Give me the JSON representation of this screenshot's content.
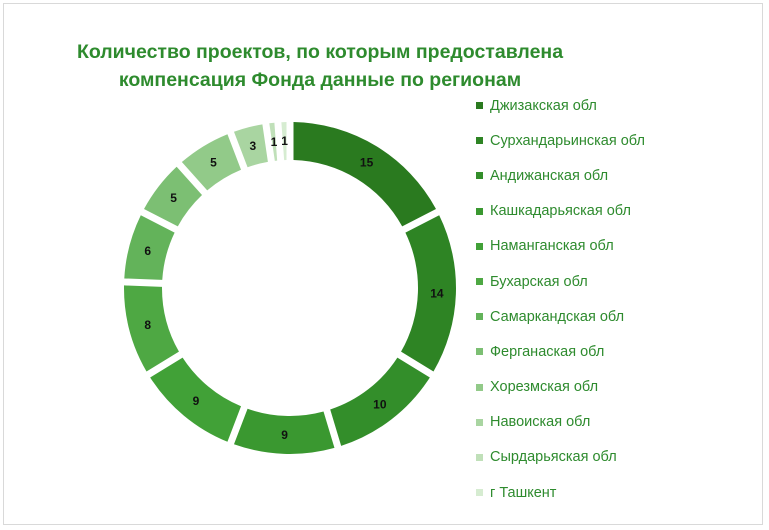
{
  "chart_data": {
    "type": "doughnut",
    "title": "Количество проектов, по которым предоставлена компенсация Фонда данные по регионам",
    "title_lines": [
      "Количество проектов, по которым предоставлена",
      "компенсация Фонда данные по регионам"
    ],
    "legend_position": "right",
    "label_color": "#111111",
    "title_color": "#2e8b2e",
    "series": [
      {
        "name": "Джизакская обл",
        "value": 15,
        "color": "#2a7a1f"
      },
      {
        "name": "Сурхандарьинская обл",
        "value": 14,
        "color": "#2e8424"
      },
      {
        "name": "Андижанская обл",
        "value": 10,
        "color": "#338e2a"
      },
      {
        "name": "Кашкадарьяская обл",
        "value": 9,
        "color": "#3a9830"
      },
      {
        "name": "Наманганская обл",
        "value": 9,
        "color": "#41a137"
      },
      {
        "name": "Бухарская обл",
        "value": 8,
        "color": "#4ea843"
      },
      {
        "name": "Самаркандская обл",
        "value": 6,
        "color": "#63b35a"
      },
      {
        "name": "Ферганаская обл",
        "value": 5,
        "color": "#7cbf73"
      },
      {
        "name": "Хорезмская обл",
        "value": 5,
        "color": "#92ca89"
      },
      {
        "name": "Навоиская обл",
        "value": 3,
        "color": "#a9d5a1"
      },
      {
        "name": "Сырдарьяская обл",
        "value": 1,
        "color": "#c0e0b9"
      },
      {
        "name": "г Ташкент",
        "value": 1,
        "color": "#d6ecd1"
      }
    ]
  }
}
